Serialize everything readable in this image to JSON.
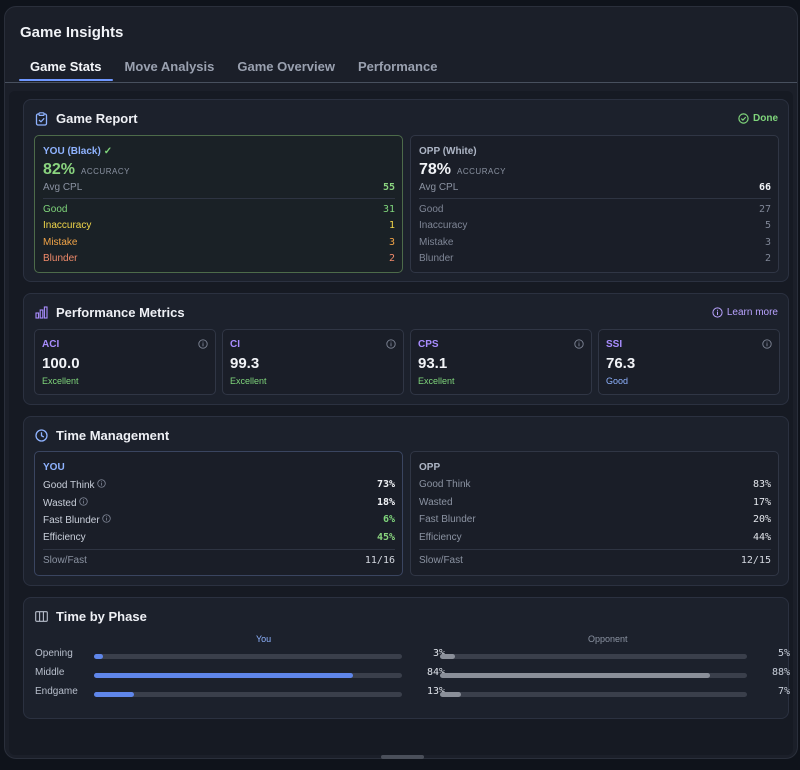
{
  "app": {
    "title": "Game Insights"
  },
  "tabs": [
    {
      "label": "Game Stats",
      "active": true
    },
    {
      "label": "Move Analysis"
    },
    {
      "label": "Game Overview"
    },
    {
      "label": "Performance"
    }
  ],
  "game_report": {
    "title": "Game Report",
    "status": "Done",
    "you": {
      "label": "YOU (Black)",
      "check": "✓",
      "accuracy": "82%",
      "accuracy_label": "ACCURACY",
      "avg_cpl_label": "Avg CPL",
      "avg_cpl": "55",
      "rows": [
        {
          "label": "Good",
          "value": "31"
        },
        {
          "label": "Inaccuracy",
          "value": "1"
        },
        {
          "label": "Mistake",
          "value": "3"
        },
        {
          "label": "Blunder",
          "value": "2"
        }
      ]
    },
    "opp": {
      "label": "OPP (White)",
      "accuracy": "78%",
      "accuracy_label": "ACCURACY",
      "avg_cpl_label": "Avg CPL",
      "avg_cpl": "66",
      "rows": [
        {
          "label": "Good",
          "value": "27"
        },
        {
          "label": "Inaccuracy",
          "value": "5"
        },
        {
          "label": "Mistake",
          "value": "3"
        },
        {
          "label": "Blunder",
          "value": "2"
        }
      ]
    }
  },
  "performance": {
    "title": "Performance Metrics",
    "learn_more": "Learn more",
    "metrics": [
      {
        "name": "ACI",
        "value": "100.0",
        "rating": "Excellent"
      },
      {
        "name": "CI",
        "value": "99.3",
        "rating": "Excellent"
      },
      {
        "name": "CPS",
        "value": "93.1",
        "rating": "Excellent"
      },
      {
        "name": "SSI",
        "value": "76.3",
        "rating": "Good"
      }
    ]
  },
  "time_management": {
    "title": "Time Management",
    "you": {
      "label": "YOU",
      "rows": [
        {
          "label": "Good Think",
          "value": "73%"
        },
        {
          "label": "Wasted",
          "value": "18%"
        },
        {
          "label": "Fast Blunder",
          "value": "6%"
        },
        {
          "label": "Efficiency",
          "value": "45%"
        }
      ],
      "slow_fast_label": "Slow/Fast",
      "slow_fast": "11/16"
    },
    "opp": {
      "label": "OPP",
      "rows": [
        {
          "label": "Good Think",
          "value": "83%"
        },
        {
          "label": "Wasted",
          "value": "17%"
        },
        {
          "label": "Fast Blunder",
          "value": "20%"
        },
        {
          "label": "Efficiency",
          "value": "44%"
        }
      ],
      "slow_fast_label": "Slow/Fast",
      "slow_fast": "12/15"
    }
  },
  "time_by_phase": {
    "title": "Time by Phase",
    "you_header": "You",
    "opp_header": "Opponent",
    "phases": [
      {
        "label": "Opening",
        "you": 3,
        "you_text": "3%",
        "opp": 5,
        "opp_text": "5%"
      },
      {
        "label": "Middle",
        "you": 84,
        "you_text": "84%",
        "opp": 88,
        "opp_text": "88%"
      },
      {
        "label": "Endgame",
        "you": 13,
        "you_text": "13%",
        "opp": 7,
        "opp_text": "7%"
      }
    ]
  },
  "colors": {
    "accent": "#6f97ff",
    "good": "#7fd57b",
    "inaccuracy": "#f0d64a",
    "mistake": "#f0a347",
    "blunder": "#f08a6a",
    "metric_name": "#a98dff",
    "excellent": "#7fd57b",
    "good_rating": "#8fb3ff",
    "you_bar": "#5f86ea",
    "opp_bar": "#8a8f99"
  }
}
